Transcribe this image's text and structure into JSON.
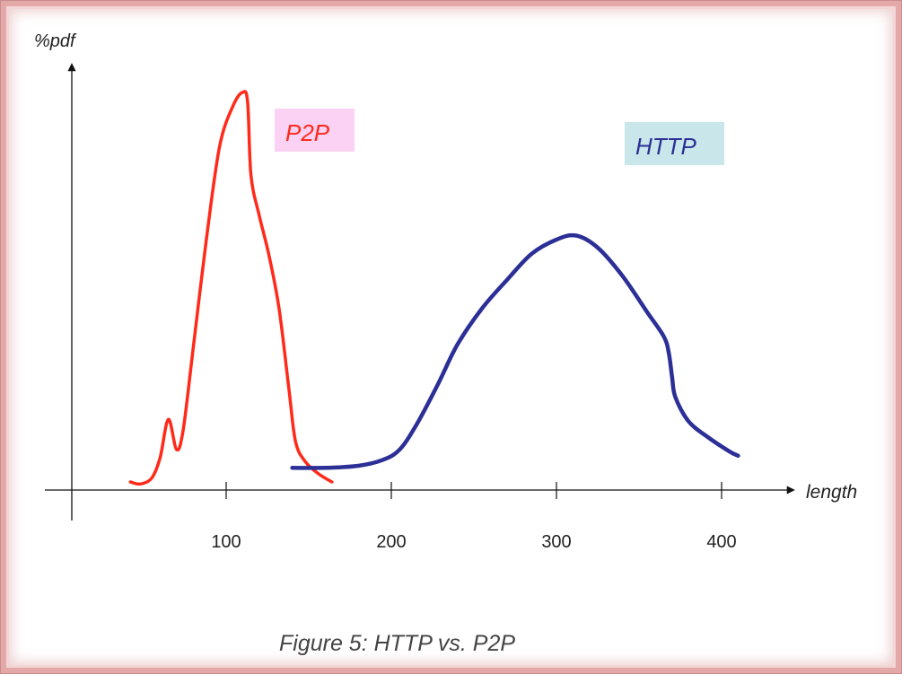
{
  "chart_data": {
    "type": "line",
    "ylabel": "%pdf",
    "xlabel": "length",
    "xlim": [
      0,
      450
    ],
    "ylim": [
      0,
      1
    ],
    "xticks": [
      100,
      200,
      300,
      400
    ],
    "tick_labels": [
      "100",
      "200",
      "300",
      "400"
    ],
    "caption": "Figure 5: HTTP vs. P2P",
    "series": [
      {
        "name": "P2P",
        "color": "#ff2a1a",
        "label_bg": "#fcd2f4",
        "points": [
          [
            42,
            0.02
          ],
          [
            48,
            0.015
          ],
          [
            55,
            0.03
          ],
          [
            60,
            0.08
          ],
          [
            65,
            0.175
          ],
          [
            70,
            0.1
          ],
          [
            74,
            0.15
          ],
          [
            80,
            0.35
          ],
          [
            88,
            0.62
          ],
          [
            96,
            0.85
          ],
          [
            104,
            0.95
          ],
          [
            110,
            0.985
          ],
          [
            113,
            0.96
          ],
          [
            115,
            0.78
          ],
          [
            120,
            0.68
          ],
          [
            126,
            0.58
          ],
          [
            132,
            0.45
          ],
          [
            138,
            0.25
          ],
          [
            142,
            0.12
          ],
          [
            148,
            0.07
          ],
          [
            156,
            0.04
          ],
          [
            164,
            0.02
          ]
        ]
      },
      {
        "name": "HTTP",
        "color": "#2b2f96",
        "label_bg": "#c9e6ea",
        "points": [
          [
            140,
            0.055
          ],
          [
            160,
            0.055
          ],
          [
            180,
            0.06
          ],
          [
            195,
            0.075
          ],
          [
            205,
            0.1
          ],
          [
            215,
            0.16
          ],
          [
            228,
            0.26
          ],
          [
            240,
            0.36
          ],
          [
            255,
            0.45
          ],
          [
            270,
            0.52
          ],
          [
            285,
            0.585
          ],
          [
            300,
            0.62
          ],
          [
            312,
            0.63
          ],
          [
            325,
            0.6
          ],
          [
            340,
            0.53
          ],
          [
            355,
            0.44
          ],
          [
            365,
            0.38
          ],
          [
            368,
            0.34
          ],
          [
            370,
            0.28
          ],
          [
            372,
            0.23
          ],
          [
            380,
            0.17
          ],
          [
            392,
            0.13
          ],
          [
            405,
            0.095
          ],
          [
            410,
            0.085
          ]
        ]
      }
    ]
  }
}
